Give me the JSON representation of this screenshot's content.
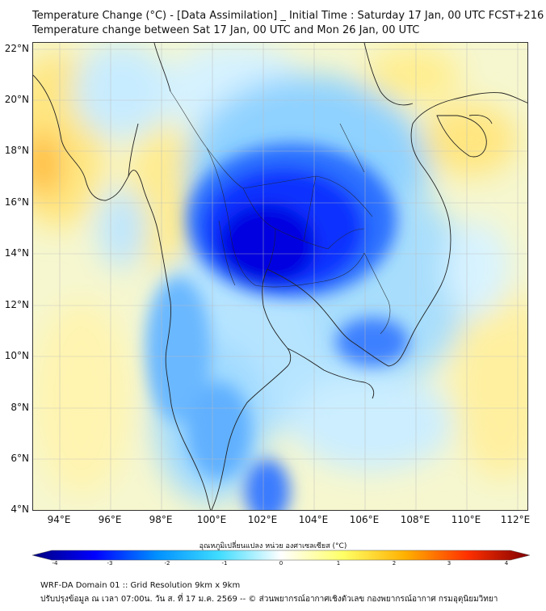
{
  "title_line1": "Temperature Change (°C) - [Data Assimilation] _ Initial Time : Saturday 17 Jan, 00 UTC FCST+216",
  "title_line2": "Temperature change between Sat 17 Jan, 00 UTC and Mon 26 Jan, 00 UTC",
  "lat_labels": [
    "22°N",
    "20°N",
    "18°N",
    "16°N",
    "14°N",
    "12°N",
    "10°N",
    "8°N",
    "6°N",
    "4°N"
  ],
  "lon_labels": [
    "94°E",
    "96°E",
    "98°E",
    "100°E",
    "102°E",
    "104°E",
    "106°E",
    "108°E",
    "110°E",
    "112°E"
  ],
  "colorbar": {
    "title": "อุณหภูมิเปลี่ยนแปลง หน่วย องศาเซลเซียส (°C)",
    "ticks": [
      "-4",
      "-3",
      "-2",
      "-1",
      "0",
      "1",
      "2",
      "3",
      "4"
    ],
    "colors": [
      "#00007f",
      "#0000ff",
      "#0090ff",
      "#3fdcff",
      "#ffffff",
      "#ffff66",
      "#ffb000",
      "#ff3000",
      "#7f0000"
    ]
  },
  "footer_line1": "WRF-DA Domain 01 :: Grid Resolution 9km x 9km",
  "footer_line2": "ปรับปรุงข้อมูล ณ เวลา 07:00น. วัน ส. ที่ 17 ม.ค. 2569 -- © ส่วนพยากรณ์อากาศเชิงตัวเลข กองพยากรณ์อากาศ กรมอุตุนิยมวิทยา"
}
